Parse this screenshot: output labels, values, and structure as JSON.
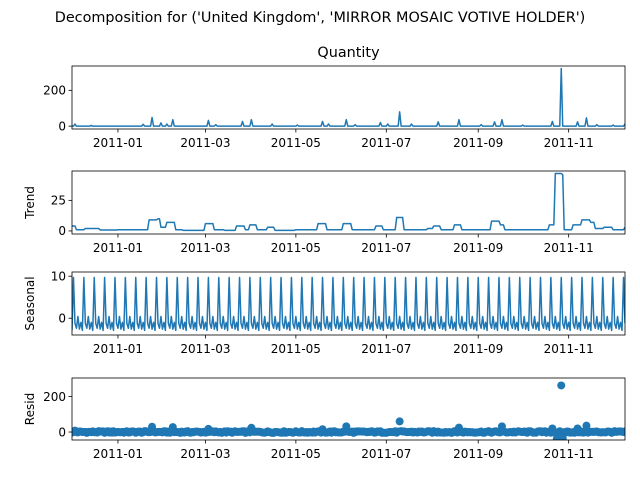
{
  "chart_data": {
    "type": "line",
    "suptitle": "Decomposition for ('United Kingdom', 'MIRROR MOSAIC VOTIVE HOLDER')",
    "color": "#1f77b4",
    "x_ticks": [
      "2011-01",
      "2011-03",
      "2011-05",
      "2011-07",
      "2011-09",
      "2011-11"
    ],
    "x_range": [
      "2010-12-01",
      "2011-12-09"
    ],
    "panels": [
      {
        "key": "observed",
        "title": "Quantity",
        "ylabel": "",
        "kind": "line",
        "ylim": [
          -16,
          336
        ],
        "yticks": [
          "0",
          "200"
        ],
        "yticks_values": [
          0,
          200
        ],
        "spikes": [
          [
            "2010-12-03",
            12
          ],
          [
            "2010-12-14",
            4
          ],
          [
            "2011-01-18",
            10
          ],
          [
            "2011-01-24",
            48
          ],
          [
            "2011-01-30",
            18
          ],
          [
            "2011-02-03",
            12
          ],
          [
            "2011-02-07",
            36
          ],
          [
            "2011-03-03",
            32
          ],
          [
            "2011-03-08",
            8
          ],
          [
            "2011-03-26",
            26
          ],
          [
            "2011-04-01",
            36
          ],
          [
            "2011-04-15",
            12
          ],
          [
            "2011-05-02",
            6
          ],
          [
            "2011-05-19",
            26
          ],
          [
            "2011-05-23",
            12
          ],
          [
            "2011-06-04",
            36
          ],
          [
            "2011-06-10",
            8
          ],
          [
            "2011-06-27",
            20
          ],
          [
            "2011-07-02",
            12
          ],
          [
            "2011-07-10",
            80
          ],
          [
            "2011-07-18",
            12
          ],
          [
            "2011-08-05",
            24
          ],
          [
            "2011-08-19",
            36
          ],
          [
            "2011-09-03",
            8
          ],
          [
            "2011-09-12",
            24
          ],
          [
            "2011-09-17",
            36
          ],
          [
            "2011-10-01",
            6
          ],
          [
            "2011-10-21",
            26
          ],
          [
            "2011-10-27",
            322
          ],
          [
            "2011-11-07",
            24
          ],
          [
            "2011-11-13",
            46
          ],
          [
            "2011-11-20",
            8
          ],
          [
            "2011-12-01",
            6
          ],
          [
            "2011-12-09",
            12
          ]
        ]
      },
      {
        "key": "trend",
        "title": "",
        "ylabel": "Trend",
        "kind": "line",
        "ylim": [
          -2.5,
          49
        ],
        "yticks": [
          "0",
          "25"
        ],
        "yticks_values": [
          0,
          25
        ],
        "steps": [
          [
            "2010-12-01",
            4
          ],
          [
            "2010-12-04",
            1
          ],
          [
            "2010-12-10",
            2
          ],
          [
            "2010-12-20",
            0.8
          ],
          [
            "2011-01-01",
            1
          ],
          [
            "2011-01-20",
            1
          ],
          [
            "2011-01-22",
            9
          ],
          [
            "2011-01-28",
            10
          ],
          [
            "2011-01-30",
            3
          ],
          [
            "2011-02-03",
            7
          ],
          [
            "2011-02-09",
            1
          ],
          [
            "2011-02-14",
            0.5
          ],
          [
            "2011-03-01",
            6
          ],
          [
            "2011-03-07",
            1
          ],
          [
            "2011-03-14",
            0.5
          ],
          [
            "2011-03-22",
            4
          ],
          [
            "2011-03-28",
            1
          ],
          [
            "2011-03-31",
            5
          ],
          [
            "2011-04-05",
            1
          ],
          [
            "2011-04-12",
            3
          ],
          [
            "2011-04-17",
            0.5
          ],
          [
            "2011-05-01",
            1
          ],
          [
            "2011-05-16",
            6
          ],
          [
            "2011-05-22",
            1
          ],
          [
            "2011-06-02",
            6
          ],
          [
            "2011-06-08",
            1
          ],
          [
            "2011-06-24",
            4
          ],
          [
            "2011-06-29",
            1
          ],
          [
            "2011-07-08",
            11
          ],
          [
            "2011-07-13",
            1
          ],
          [
            "2011-07-29",
            2
          ],
          [
            "2011-08-02",
            4
          ],
          [
            "2011-08-07",
            1
          ],
          [
            "2011-08-16",
            5
          ],
          [
            "2011-08-21",
            1
          ],
          [
            "2011-09-10",
            8
          ],
          [
            "2011-09-16",
            5
          ],
          [
            "2011-09-19",
            1
          ],
          [
            "2011-10-19",
            5
          ],
          [
            "2011-10-23",
            47
          ],
          [
            "2011-10-28",
            46
          ],
          [
            "2011-10-29",
            1
          ],
          [
            "2011-11-04",
            5
          ],
          [
            "2011-11-10",
            9
          ],
          [
            "2011-11-16",
            7
          ],
          [
            "2011-11-19",
            2
          ],
          [
            "2011-11-25",
            3
          ],
          [
            "2011-12-01",
            1
          ],
          [
            "2011-12-09",
            3
          ]
        ]
      },
      {
        "key": "seasonal",
        "title": "",
        "ylabel": "Seasonal",
        "kind": "line",
        "ylim": [
          -4,
          11
        ],
        "yticks": [
          "0",
          "10"
        ],
        "yticks_values": [
          0,
          10
        ],
        "period_days": 7,
        "pattern": [
          -2.9,
          9.7,
          -1.2,
          -2.4,
          0.4,
          -2.6,
          -1.0
        ]
      },
      {
        "key": "resid",
        "title": "",
        "ylabel": "Resid",
        "kind": "scatter",
        "ylim": [
          -45,
          305
        ],
        "yticks": [
          "0",
          "200"
        ],
        "yticks_values": [
          0,
          200
        ],
        "outliers": [
          [
            "2010-12-03",
            8
          ],
          [
            "2011-01-24",
            30
          ],
          [
            "2011-02-07",
            28
          ],
          [
            "2011-03-03",
            18
          ],
          [
            "2011-04-01",
            24
          ],
          [
            "2011-05-19",
            16
          ],
          [
            "2011-06-04",
            32
          ],
          [
            "2011-07-10",
            60
          ],
          [
            "2011-08-19",
            25
          ],
          [
            "2011-09-17",
            32
          ],
          [
            "2011-10-21",
            20
          ],
          [
            "2011-10-24",
            -38
          ],
          [
            "2011-10-25",
            -30
          ],
          [
            "2011-10-27",
            263
          ],
          [
            "2011-10-28",
            -36
          ],
          [
            "2011-11-13",
            36
          ],
          [
            "2011-11-07",
            20
          ]
        ]
      }
    ]
  }
}
